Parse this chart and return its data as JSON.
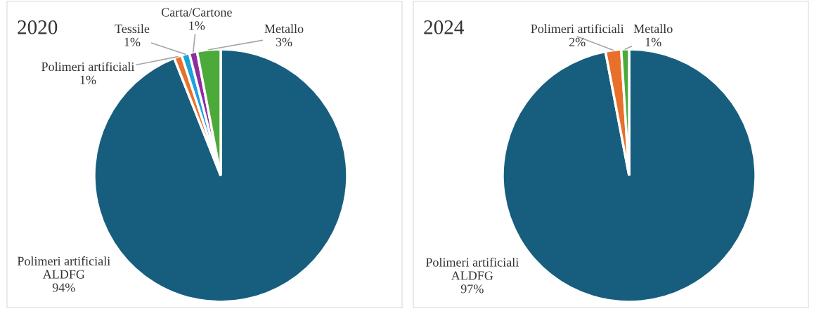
{
  "chart_data": [
    {
      "type": "pie",
      "title": "2020",
      "categories": [
        "Polimeri artificiali\nALDFG",
        "Polimeri artificiali",
        "Tessile",
        "Carta/Cartone",
        "Metallo"
      ],
      "values": [
        94,
        1,
        1,
        1,
        3
      ],
      "value_labels": [
        "94%",
        "1%",
        "1%",
        "1%",
        "3%"
      ],
      "colors": [
        "#175e7e",
        "#e8702a",
        "#1aa3d9",
        "#8e2d9e",
        "#4caa3a"
      ]
    },
    {
      "type": "pie",
      "title": "2024",
      "categories": [
        "Polimeri artificiali\nALDFG",
        "Polimeri artificiali",
        "Metallo"
      ],
      "values": [
        97,
        2,
        1
      ],
      "value_labels": [
        "97%",
        "2%",
        "1%"
      ],
      "colors": [
        "#175e7e",
        "#e8702a",
        "#4caa3a"
      ]
    }
  ]
}
